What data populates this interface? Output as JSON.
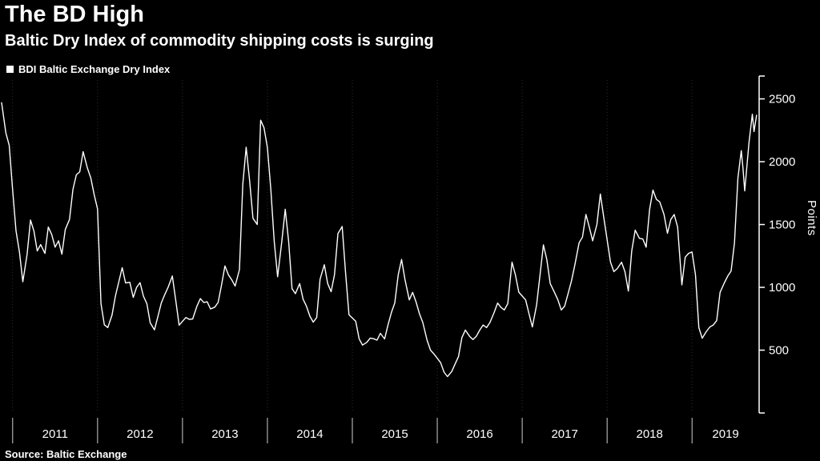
{
  "header": {
    "title": "The BD High",
    "subtitle": "Baltic Dry Index of commodity shipping costs is surging"
  },
  "legend": {
    "label": "BDI Baltic Exchange Dry Index",
    "swatch_color": "#ffffff"
  },
  "source": {
    "text": "Source: Baltic Exchange"
  },
  "chart_data": {
    "type": "line",
    "title": "The BD High",
    "subtitle": "Baltic Dry Index of commodity shipping costs is surging",
    "xlabel": "",
    "ylabel": "Points",
    "x_range": [
      2010.87,
      2019.79
    ],
    "y_range": [
      0,
      2650
    ],
    "x_ticks": [
      2011,
      2012,
      2013,
      2014,
      2015,
      2016,
      2017,
      2018,
      2019
    ],
    "x_tick_labels": [
      2011,
      2012,
      2013,
      2014,
      2015,
      2016,
      2017,
      2018,
      2019
    ],
    "y_ticks": [
      500,
      1000,
      1500,
      2000,
      2500
    ],
    "grid": "vertical-dotted",
    "legend_position": "top-left",
    "colors": {
      "background": "#000000",
      "axis": "#ffffff",
      "text": "#ffffff",
      "grid": "#2e2e2e",
      "tick": "#cfcfcf",
      "line": "#ffffff"
    },
    "series": [
      {
        "name": "BDI Baltic Exchange Dry Index",
        "color": "#ffffff",
        "points": [
          [
            2010.87,
            2470
          ],
          [
            2010.92,
            2230
          ],
          [
            2010.96,
            2130
          ],
          [
            2011.0,
            1773
          ],
          [
            2011.04,
            1450
          ],
          [
            2011.08,
            1280
          ],
          [
            2011.12,
            1045
          ],
          [
            2011.17,
            1260
          ],
          [
            2011.21,
            1535
          ],
          [
            2011.25,
            1450
          ],
          [
            2011.29,
            1290
          ],
          [
            2011.33,
            1340
          ],
          [
            2011.38,
            1270
          ],
          [
            2011.42,
            1480
          ],
          [
            2011.46,
            1420
          ],
          [
            2011.5,
            1320
          ],
          [
            2011.54,
            1370
          ],
          [
            2011.58,
            1264
          ],
          [
            2011.62,
            1460
          ],
          [
            2011.67,
            1540
          ],
          [
            2011.71,
            1780
          ],
          [
            2011.75,
            1895
          ],
          [
            2011.79,
            1920
          ],
          [
            2011.83,
            2080
          ],
          [
            2011.88,
            1950
          ],
          [
            2011.92,
            1870
          ],
          [
            2011.96,
            1738
          ],
          [
            2012.0,
            1624
          ],
          [
            2012.04,
            870
          ],
          [
            2012.08,
            702
          ],
          [
            2012.12,
            680
          ],
          [
            2012.17,
            780
          ],
          [
            2012.21,
            930
          ],
          [
            2012.25,
            1045
          ],
          [
            2012.29,
            1157
          ],
          [
            2012.33,
            1035
          ],
          [
            2012.38,
            1040
          ],
          [
            2012.42,
            920
          ],
          [
            2012.46,
            1000
          ],
          [
            2012.5,
            1037
          ],
          [
            2012.54,
            930
          ],
          [
            2012.58,
            870
          ],
          [
            2012.62,
            717
          ],
          [
            2012.67,
            662
          ],
          [
            2012.71,
            766
          ],
          [
            2012.75,
            875
          ],
          [
            2012.79,
            940
          ],
          [
            2012.83,
            1000
          ],
          [
            2012.88,
            1090
          ],
          [
            2012.92,
            900
          ],
          [
            2012.96,
            699
          ],
          [
            2013.04,
            760
          ],
          [
            2013.08,
            745
          ],
          [
            2013.12,
            748
          ],
          [
            2013.17,
            850
          ],
          [
            2013.21,
            910
          ],
          [
            2013.25,
            880
          ],
          [
            2013.29,
            885
          ],
          [
            2013.33,
            828
          ],
          [
            2013.38,
            842
          ],
          [
            2013.42,
            880
          ],
          [
            2013.46,
            1020
          ],
          [
            2013.5,
            1170
          ],
          [
            2013.54,
            1100
          ],
          [
            2013.58,
            1060
          ],
          [
            2013.62,
            1010
          ],
          [
            2013.67,
            1140
          ],
          [
            2013.71,
            1820
          ],
          [
            2013.75,
            2115
          ],
          [
            2013.79,
            1850
          ],
          [
            2013.83,
            1550
          ],
          [
            2013.88,
            1500
          ],
          [
            2013.92,
            2330
          ],
          [
            2013.96,
            2270
          ],
          [
            2014.0,
            2113
          ],
          [
            2014.04,
            1780
          ],
          [
            2014.08,
            1370
          ],
          [
            2014.12,
            1084
          ],
          [
            2014.17,
            1370
          ],
          [
            2014.21,
            1621
          ],
          [
            2014.25,
            1362
          ],
          [
            2014.29,
            989
          ],
          [
            2014.33,
            950
          ],
          [
            2014.38,
            1030
          ],
          [
            2014.42,
            906
          ],
          [
            2014.46,
            850
          ],
          [
            2014.5,
            770
          ],
          [
            2014.54,
            723
          ],
          [
            2014.58,
            760
          ],
          [
            2014.62,
            1065
          ],
          [
            2014.67,
            1180
          ],
          [
            2014.71,
            1030
          ],
          [
            2014.75,
            965
          ],
          [
            2014.79,
            1100
          ],
          [
            2014.83,
            1428
          ],
          [
            2014.88,
            1484
          ],
          [
            2014.92,
            1120
          ],
          [
            2014.96,
            782
          ],
          [
            2015.04,
            730
          ],
          [
            2015.08,
            590
          ],
          [
            2015.12,
            540
          ],
          [
            2015.17,
            562
          ],
          [
            2015.21,
            596
          ],
          [
            2015.25,
            591
          ],
          [
            2015.29,
            580
          ],
          [
            2015.33,
            634
          ],
          [
            2015.38,
            589
          ],
          [
            2015.42,
            700
          ],
          [
            2015.46,
            800
          ],
          [
            2015.5,
            876
          ],
          [
            2015.54,
            1100
          ],
          [
            2015.58,
            1222
          ],
          [
            2015.62,
            1060
          ],
          [
            2015.67,
            900
          ],
          [
            2015.71,
            960
          ],
          [
            2015.75,
            885
          ],
          [
            2015.79,
            790
          ],
          [
            2015.83,
            720
          ],
          [
            2015.88,
            580
          ],
          [
            2015.92,
            500
          ],
          [
            2015.96,
            471
          ],
          [
            2016.04,
            400
          ],
          [
            2016.08,
            325
          ],
          [
            2016.12,
            290
          ],
          [
            2016.17,
            330
          ],
          [
            2016.21,
            390
          ],
          [
            2016.25,
            450
          ],
          [
            2016.29,
            600
          ],
          [
            2016.33,
            660
          ],
          [
            2016.38,
            610
          ],
          [
            2016.42,
            585
          ],
          [
            2016.46,
            610
          ],
          [
            2016.5,
            660
          ],
          [
            2016.54,
            700
          ],
          [
            2016.58,
            680
          ],
          [
            2016.62,
            720
          ],
          [
            2016.67,
            800
          ],
          [
            2016.71,
            875
          ],
          [
            2016.75,
            840
          ],
          [
            2016.79,
            820
          ],
          [
            2016.83,
            870
          ],
          [
            2016.88,
            1200
          ],
          [
            2016.92,
            1100
          ],
          [
            2016.96,
            961
          ],
          [
            2017.04,
            900
          ],
          [
            2017.08,
            790
          ],
          [
            2017.12,
            685
          ],
          [
            2017.17,
            860
          ],
          [
            2017.21,
            1100
          ],
          [
            2017.25,
            1338
          ],
          [
            2017.29,
            1220
          ],
          [
            2017.33,
            1030
          ],
          [
            2017.38,
            960
          ],
          [
            2017.42,
            900
          ],
          [
            2017.46,
            820
          ],
          [
            2017.5,
            850
          ],
          [
            2017.54,
            950
          ],
          [
            2017.58,
            1050
          ],
          [
            2017.62,
            1180
          ],
          [
            2017.67,
            1355
          ],
          [
            2017.71,
            1400
          ],
          [
            2017.75,
            1580
          ],
          [
            2017.79,
            1480
          ],
          [
            2017.83,
            1370
          ],
          [
            2017.88,
            1500
          ],
          [
            2017.92,
            1743
          ],
          [
            2017.96,
            1560
          ],
          [
            2018.04,
            1200
          ],
          [
            2018.08,
            1125
          ],
          [
            2018.12,
            1150
          ],
          [
            2018.17,
            1200
          ],
          [
            2018.21,
            1125
          ],
          [
            2018.25,
            970
          ],
          [
            2018.29,
            1290
          ],
          [
            2018.33,
            1455
          ],
          [
            2018.38,
            1390
          ],
          [
            2018.42,
            1385
          ],
          [
            2018.46,
            1320
          ],
          [
            2018.5,
            1620
          ],
          [
            2018.54,
            1774
          ],
          [
            2018.58,
            1700
          ],
          [
            2018.62,
            1680
          ],
          [
            2018.67,
            1580
          ],
          [
            2018.71,
            1430
          ],
          [
            2018.75,
            1540
          ],
          [
            2018.79,
            1580
          ],
          [
            2018.83,
            1480
          ],
          [
            2018.88,
            1020
          ],
          [
            2018.92,
            1240
          ],
          [
            2018.96,
            1271
          ],
          [
            2019.0,
            1282
          ],
          [
            2019.04,
            1100
          ],
          [
            2019.08,
            680
          ],
          [
            2019.12,
            595
          ],
          [
            2019.17,
            650
          ],
          [
            2019.21,
            685
          ],
          [
            2019.25,
            700
          ],
          [
            2019.29,
            735
          ],
          [
            2019.33,
            960
          ],
          [
            2019.38,
            1035
          ],
          [
            2019.42,
            1090
          ],
          [
            2019.46,
            1130
          ],
          [
            2019.5,
            1354
          ],
          [
            2019.54,
            1870
          ],
          [
            2019.58,
            2088
          ],
          [
            2019.6,
            1950
          ],
          [
            2019.62,
            1768
          ],
          [
            2019.67,
            2150
          ],
          [
            2019.71,
            2378
          ],
          [
            2019.73,
            2240
          ],
          [
            2019.76,
            2370
          ]
        ]
      }
    ]
  }
}
